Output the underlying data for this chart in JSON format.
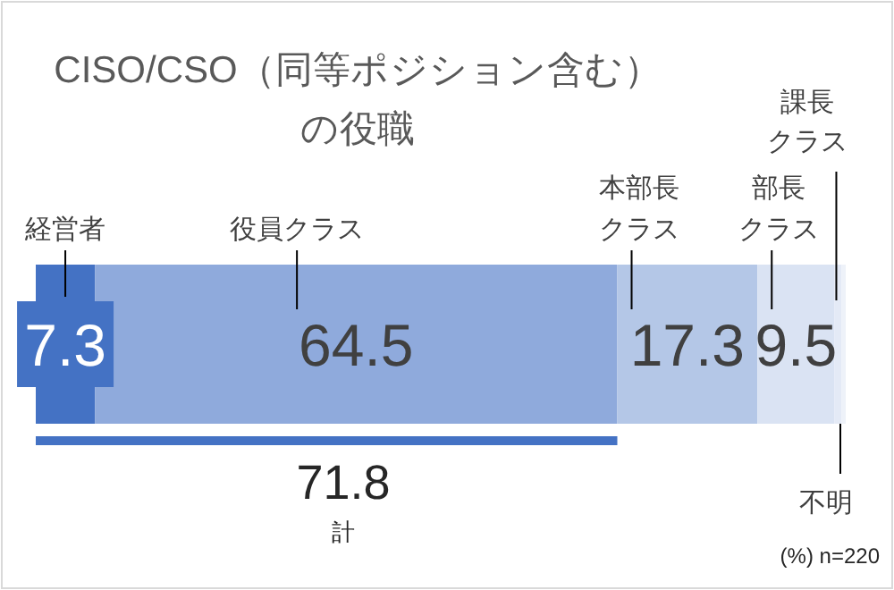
{
  "chart_data": {
    "type": "bar",
    "orientation": "horizontal",
    "stacked": true,
    "title": "CISO/CSO（同等ポジション含む）の役職",
    "categories": [
      null
    ],
    "series": [
      {
        "name": "経営者",
        "color": "#4472c4",
        "values": [
          7.3
        ],
        "value_labels": [
          "7.3"
        ]
      },
      {
        "name": "役員クラス",
        "color": "#8faadc",
        "values": [
          64.5
        ],
        "value_labels": [
          "64.5"
        ]
      },
      {
        "name": "本部長クラス",
        "color": "#b4c7e7",
        "values": [
          17.3
        ],
        "value_labels": [
          "17.3"
        ]
      },
      {
        "name": "部長クラス",
        "color": "#dae3f3",
        "values": [
          9.5
        ],
        "value_labels": [
          "9.5"
        ]
      },
      {
        "name": "課長クラス",
        "color": "#e4eaf6",
        "values": [
          0.9
        ],
        "value_labels": [
          null
        ]
      },
      {
        "name": "不明",
        "color": "#eef2f9",
        "values": [
          0.5
        ],
        "value_labels": [
          null
        ]
      }
    ],
    "annotations": [
      "71.8",
      "計",
      "(%) n=220"
    ]
  }
}
